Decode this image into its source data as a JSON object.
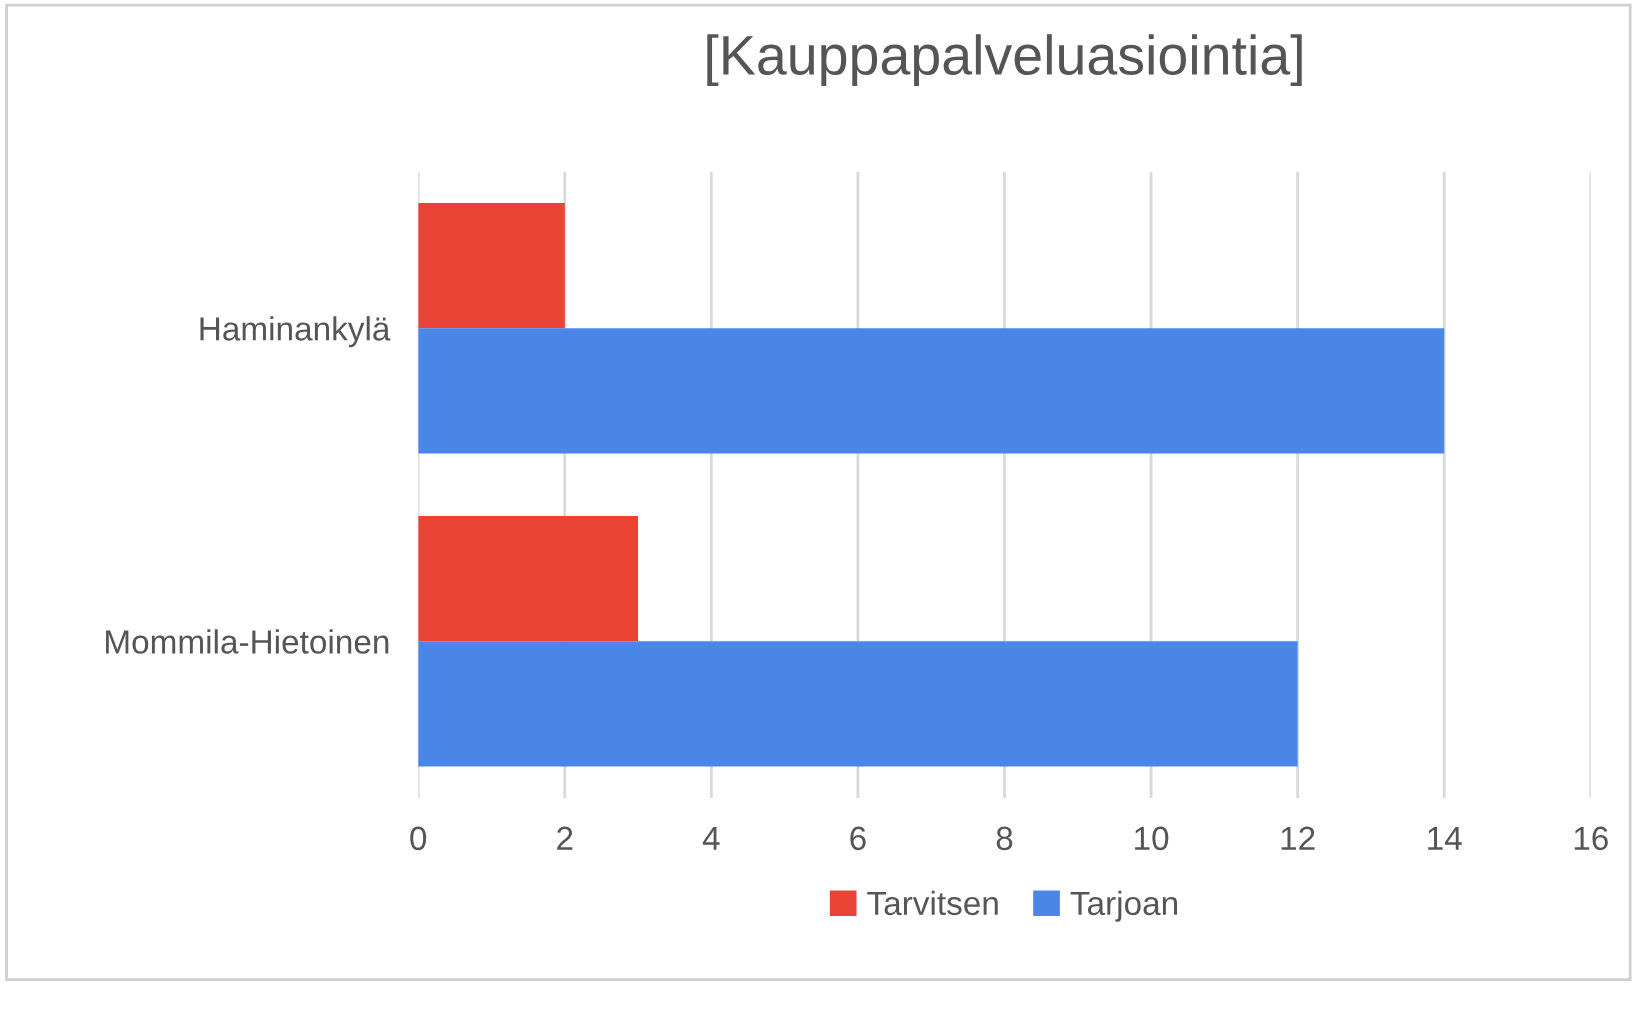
{
  "chart_data": {
    "type": "bar",
    "orientation": "horizontal",
    "title": "[Kauppapalveluasiointia]",
    "categories": [
      "Haminankylä",
      "Mommila-Hietoinen"
    ],
    "series": [
      {
        "name": "Tarvitsen",
        "color": "#ea4335",
        "values": [
          2,
          3
        ]
      },
      {
        "name": "Tarjoan",
        "color": "#4a86e8",
        "values": [
          14,
          12
        ]
      }
    ],
    "xlim": [
      0,
      16
    ],
    "xticks": [
      0,
      2,
      4,
      6,
      8,
      10,
      12,
      14,
      16
    ],
    "grid": "x",
    "legend": "bottom"
  }
}
